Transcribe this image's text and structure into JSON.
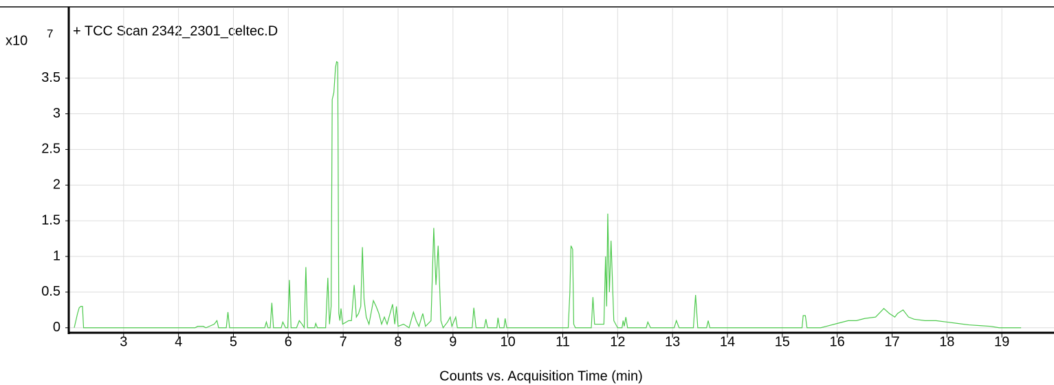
{
  "chart_data": {
    "type": "line",
    "title": "+ TCC Scan 2342_2301_celtec.D",
    "y_multiplier": "x10",
    "y_exponent": "7",
    "x_label": "Counts vs. Acquisition Time (min)",
    "color": "#4cc94c",
    "grid": true,
    "xlim": [
      2.0,
      19.95
    ],
    "ylim": [
      -0.07,
      4.48
    ],
    "xticks": [
      3,
      4,
      5,
      6,
      7,
      8,
      9,
      10,
      11,
      12,
      13,
      14,
      15,
      16,
      17,
      18,
      19
    ],
    "yticks": [
      0,
      0.5,
      1,
      1.5,
      2,
      2.5,
      3,
      3.5
    ],
    "x": [
      2.1,
      2.13,
      2.16,
      2.19,
      2.22,
      2.25,
      2.27,
      4.3,
      4.35,
      4.45,
      4.5,
      4.65,
      4.7,
      4.73,
      4.87,
      4.9,
      4.93,
      5.57,
      5.6,
      5.63,
      5.67,
      5.7,
      5.73,
      5.87,
      5.9,
      5.95,
      5.99,
      6.02,
      6.05,
      6.15,
      6.2,
      6.25,
      6.29,
      6.32,
      6.35,
      6.48,
      6.5,
      6.53,
      6.68,
      6.72,
      6.75,
      6.78,
      6.8,
      6.83,
      6.86,
      6.88,
      6.9,
      6.92,
      6.94,
      6.96,
      6.99,
      7.1,
      7.15,
      7.2,
      7.24,
      7.28,
      7.32,
      7.35,
      7.38,
      7.42,
      7.47,
      7.55,
      7.6,
      7.65,
      7.7,
      7.75,
      7.8,
      7.9,
      7.94,
      7.97,
      8.0,
      8.1,
      8.2,
      8.28,
      8.33,
      8.38,
      8.45,
      8.5,
      8.6,
      8.65,
      8.69,
      8.73,
      8.78,
      8.82,
      8.9,
      8.95,
      8.98,
      9.05,
      9.08,
      9.35,
      9.38,
      9.42,
      9.57,
      9.6,
      9.63,
      9.8,
      9.82,
      9.85,
      9.93,
      9.95,
      9.98,
      11.1,
      11.13,
      11.15,
      11.18,
      11.2,
      11.23,
      11.52,
      11.55,
      11.58,
      11.75,
      11.78,
      11.8,
      11.82,
      11.85,
      11.88,
      11.93,
      12.0,
      12.08,
      12.1,
      12.12,
      12.15,
      12.18,
      12.52,
      12.55,
      12.6,
      13.03,
      13.07,
      13.12,
      13.38,
      13.42,
      13.46,
      13.62,
      13.65,
      13.68,
      15.36,
      15.38,
      15.42,
      15.45,
      15.7,
      15.8,
      16.0,
      16.2,
      16.35,
      16.5,
      16.7,
      16.85,
      16.95,
      17.05,
      17.1,
      17.2,
      17.3,
      17.4,
      17.6,
      17.8,
      18.0,
      18.2,
      18.4,
      18.6,
      18.8,
      18.95,
      19.35
    ],
    "values": [
      0,
      0.1,
      0.2,
      0.28,
      0.3,
      0.3,
      0,
      0,
      0.02,
      0.02,
      0,
      0.05,
      0.1,
      0,
      0,
      0.22,
      0,
      0,
      0.08,
      0,
      0,
      0.35,
      0,
      0,
      0.08,
      0,
      0,
      0.67,
      0,
      0,
      0.1,
      0.05,
      0,
      0.85,
      0,
      0,
      0.06,
      0,
      0,
      0.7,
      0.05,
      0.3,
      3.2,
      3.3,
      3.65,
      3.73,
      3.72,
      0.2,
      0.1,
      0.27,
      0.05,
      0.1,
      0.1,
      0.6,
      0.15,
      0.2,
      0.3,
      1.13,
      0.4,
      0.15,
      0.05,
      0.38,
      0.3,
      0.2,
      0.05,
      0.15,
      0.05,
      0.33,
      0.05,
      0.3,
      0.02,
      0.05,
      0,
      0.22,
      0.1,
      0.02,
      0.2,
      0.02,
      0.1,
      1.4,
      0.6,
      1.15,
      0.1,
      0,
      0.08,
      0.15,
      0.02,
      0.15,
      0,
      0,
      0.28,
      0,
      0,
      0.12,
      0,
      0,
      0.14,
      0,
      0,
      0.13,
      0,
      0,
      0.5,
      1.15,
      1.1,
      0.05,
      0,
      0,
      0.43,
      0.05,
      0.05,
      1.0,
      0.3,
      1.6,
      0.5,
      1.22,
      0.1,
      0,
      0,
      0.1,
      0.02,
      0.15,
      0,
      0,
      0.08,
      0,
      0,
      0.1,
      0,
      0,
      0.46,
      0,
      0,
      0.1,
      0,
      0,
      0.17,
      0.17,
      0,
      0,
      0.02,
      0.06,
      0.1,
      0.1,
      0.13,
      0.15,
      0.27,
      0.2,
      0.15,
      0.2,
      0.25,
      0.15,
      0.12,
      0.1,
      0.1,
      0.08,
      0.06,
      0.04,
      0.03,
      0.02,
      0,
      0
    ]
  }
}
